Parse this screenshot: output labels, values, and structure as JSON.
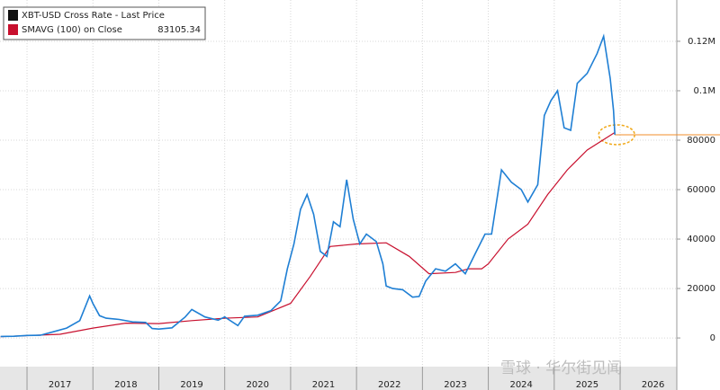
{
  "chart_data": {
    "type": "line",
    "watermark": "雪球 · 华尔街见闻",
    "xlim": [
      2016.59,
      2026.86
    ],
    "ylim": [
      -11600,
      136700
    ],
    "xticks": [
      {
        "value": 2017,
        "label": "2017"
      },
      {
        "value": 2018,
        "label": "2018"
      },
      {
        "value": 2019,
        "label": "2019"
      },
      {
        "value": 2020,
        "label": "2020"
      },
      {
        "value": 2021,
        "label": "2021"
      },
      {
        "value": 2022,
        "label": "2022"
      },
      {
        "value": 2023,
        "label": "2023"
      },
      {
        "value": 2024,
        "label": "2024"
      },
      {
        "value": 2025,
        "label": "2025"
      },
      {
        "value": 2026,
        "label": "2026"
      }
    ],
    "yticks": [
      0,
      20000,
      40000,
      60000,
      80000,
      {
        "value": 100000,
        "label": "0.1M"
      },
      {
        "value": 120000,
        "label": "0.12M"
      }
    ],
    "grid": true,
    "legend": "top-left",
    "reference_line": {
      "value": 82200,
      "color": "#f28c28"
    },
    "series": [
      {
        "name": "XBT-USD Cross Rate - Last Price",
        "color": "#1f7fd4",
        "legend_color": "#111111",
        "x": [
          2016.6,
          2016.8,
          2017.0,
          2017.2,
          2017.4,
          2017.6,
          2017.8,
          2017.95,
          2018.0,
          2018.1,
          2018.2,
          2018.4,
          2018.6,
          2018.8,
          2018.9,
          2019.0,
          2019.2,
          2019.4,
          2019.5,
          2019.7,
          2019.9,
          2020.0,
          2020.2,
          2020.3,
          2020.5,
          2020.7,
          2020.85,
          2020.95,
          2021.05,
          2021.15,
          2021.25,
          2021.35,
          2021.45,
          2021.55,
          2021.65,
          2021.75,
          2021.85,
          2021.95,
          2022.05,
          2022.15,
          2022.3,
          2022.4,
          2022.45,
          2022.55,
          2022.7,
          2022.85,
          2022.95,
          2023.05,
          2023.2,
          2023.35,
          2023.5,
          2023.65,
          2023.8,
          2023.95,
          2024.05,
          2024.2,
          2024.35,
          2024.5,
          2024.6,
          2024.75,
          2024.85,
          2024.95,
          2025.05,
          2025.15,
          2025.25,
          2025.35,
          2025.5,
          2025.65,
          2025.75,
          2025.85,
          2025.9,
          2025.92
        ],
        "values": [
          600,
          700,
          1000,
          1100,
          2500,
          4000,
          7000,
          17000,
          14000,
          9000,
          8000,
          7500,
          6500,
          6300,
          3800,
          3600,
          4100,
          8500,
          11500,
          8500,
          7200,
          8500,
          5000,
          8800,
          9200,
          11000,
          15000,
          28000,
          38000,
          52000,
          58000,
          50000,
          35000,
          33000,
          47000,
          45000,
          64000,
          48000,
          38000,
          42000,
          39000,
          30000,
          21000,
          20000,
          19500,
          16500,
          16800,
          23000,
          28000,
          27000,
          30000,
          26000,
          34000,
          42000,
          42000,
          68000,
          63000,
          60000,
          55000,
          62000,
          90000,
          96000,
          100000,
          85000,
          84000,
          103000,
          107000,
          115000,
          122000,
          105000,
          92000,
          82200
        ]
      },
      {
        "name": "SMAVG (100)  on Close",
        "color": "#c8102e",
        "legend_color": "#c8102e",
        "last_value": 83105.34,
        "x": [
          2016.6,
          2017.5,
          2018.0,
          2018.5,
          2019.0,
          2019.5,
          2020.0,
          2020.5,
          2021.0,
          2021.3,
          2021.6,
          2022.0,
          2022.45,
          2022.8,
          2023.1,
          2023.5,
          2023.7,
          2023.9,
          2024.0,
          2024.3,
          2024.6,
          2024.9,
          2025.2,
          2025.5,
          2025.92
        ],
        "values": [
          500,
          1500,
          4000,
          6000,
          5800,
          7000,
          8000,
          8500,
          14000,
          25000,
          37000,
          38000,
          38500,
          33000,
          26000,
          26500,
          28000,
          28000,
          30000,
          40000,
          46000,
          58000,
          68000,
          76000,
          83105.34
        ]
      }
    ]
  }
}
